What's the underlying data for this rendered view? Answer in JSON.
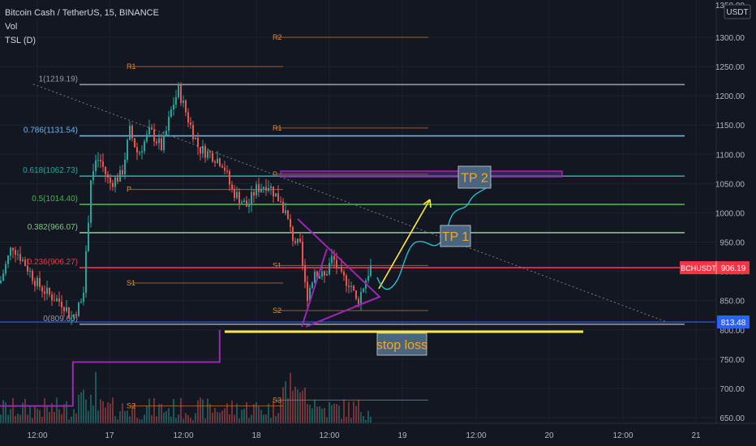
{
  "header": {
    "title": "Bitcoin Cash / TetherUS, 15, BINANCE",
    "indicator_vol": "Vol",
    "indicator_tsl": "TSL (D)"
  },
  "currency_label": "USDT",
  "chart_data": {
    "type": "candlestick",
    "symbol": "BCHUSDT",
    "last_price": 906.19,
    "y_axis": {
      "ticks": [
        650,
        700,
        750,
        800,
        850,
        900,
        950,
        1000,
        1050,
        1100,
        1150,
        1200,
        1250,
        1300
      ],
      "tick_labels": [
        "650.00",
        "700.00",
        "750.00",
        "800.00",
        "850.00",
        "900.00",
        "950.00",
        "1000.00",
        "1050.00",
        "1100.00",
        "1150.00",
        "1200.00",
        "1250.00",
        "1300.00"
      ],
      "top_partial_label": "1350.00"
    },
    "x_axis": {
      "ticks": [
        "12:00",
        "17",
        "12:00",
        "18",
        "12:00",
        "19",
        "12:00",
        "20",
        "12:00",
        "21"
      ]
    },
    "fibonacci": [
      {
        "label": "1(1219.19)",
        "value": 1219.19,
        "color": "#9598a1"
      },
      {
        "label": "0.786(1131.54)",
        "value": 1131.54,
        "color": "#64b5f6"
      },
      {
        "label": "0.618(1062.73)",
        "value": 1062.73,
        "color": "#26a69a"
      },
      {
        "label": "0.5(1014.40)",
        "value": 1014.4,
        "color": "#4caf50"
      },
      {
        "label": "0.382(966.07)",
        "value": 966.07,
        "color": "#81c784"
      },
      {
        "label": "0.236(906.27)",
        "value": 906.27,
        "color": "#f23645"
      },
      {
        "label": "0(809.60)",
        "value": 809.6,
        "color": "#9598a1"
      }
    ],
    "pivots": [
      {
        "label": "R2",
        "value": 1300,
        "segment": 2
      },
      {
        "label": "R1",
        "value": 1250,
        "segment": 1
      },
      {
        "label": "P",
        "value": 1040,
        "segment": 1
      },
      {
        "label": "S1",
        "value": 880,
        "segment": 1
      },
      {
        "label": "S2",
        "value": 670,
        "segment": 1
      },
      {
        "label": "R1",
        "value": 1145,
        "segment": 2
      },
      {
        "label": "P",
        "value": 1066,
        "segment": 2
      },
      {
        "label": "S1",
        "value": 910,
        "segment": 2
      },
      {
        "label": "S2",
        "value": 833,
        "segment": 2
      },
      {
        "label": "S3",
        "value": 680,
        "segment": 2
      }
    ],
    "horizontal_line": {
      "value": 813.48,
      "label": "813.48",
      "color": "#2962ff"
    },
    "price_tag": {
      "label": "BCHUSDT",
      "value": "906.19"
    },
    "annotations": {
      "tp1": "TP 1",
      "tp2": "TP 2",
      "stop_loss": "stop loss"
    },
    "trailing_stop": [
      {
        "x_day": 15.8,
        "value": 670
      },
      {
        "x_day": 16.75,
        "value": 670
      },
      {
        "x_day": 16.75,
        "value": 745
      },
      {
        "x_day": 17.75,
        "value": 745
      },
      {
        "x_day": 17.75,
        "value": 800
      }
    ],
    "trend_line": {
      "from": {
        "x_day": 16.48,
        "value": 1220
      },
      "to": {
        "x_day": 20.8,
        "value": 813
      }
    },
    "colors": {
      "up": "#26a69a",
      "down": "#ef5350",
      "background": "#131722",
      "grid": "#1e222d",
      "tsl": "#9c27b0",
      "stop_loss": "#ffeb3b",
      "arrow": "#ffeb3b",
      "projection": "#26c6da"
    }
  }
}
